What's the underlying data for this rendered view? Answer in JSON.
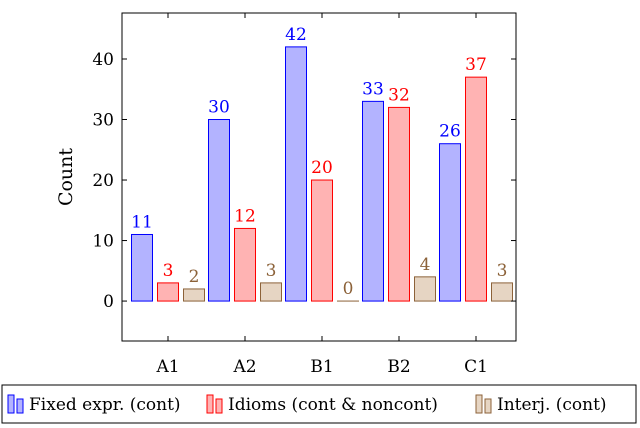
{
  "chart_data": {
    "type": "bar",
    "categories": [
      "A1",
      "A2",
      "B1",
      "B2",
      "C1"
    ],
    "series": [
      {
        "name": "Fixed expr. (cont)",
        "values": [
          11,
          30,
          42,
          33,
          26
        ],
        "fill": "#b3b3ff",
        "stroke": "#0000ff",
        "label_color": "#0000ff"
      },
      {
        "name": "Idioms (cont & noncont)",
        "values": [
          3,
          12,
          20,
          32,
          37
        ],
        "fill": "#ffb3b3",
        "stroke": "#ff0000",
        "label_color": "#ff0000"
      },
      {
        "name": "Interj. (cont)",
        "values": [
          2,
          3,
          0,
          4,
          3
        ],
        "fill": "#e6d5c3",
        "stroke": "#8c6239",
        "label_color": "#8c6239"
      }
    ],
    "xlabel": "",
    "ylabel": "Count",
    "ylim": [
      -6.6,
      47.6
    ],
    "yticks": [
      0,
      10,
      20,
      30,
      40
    ],
    "grid": false,
    "legend_position": "bottom"
  }
}
